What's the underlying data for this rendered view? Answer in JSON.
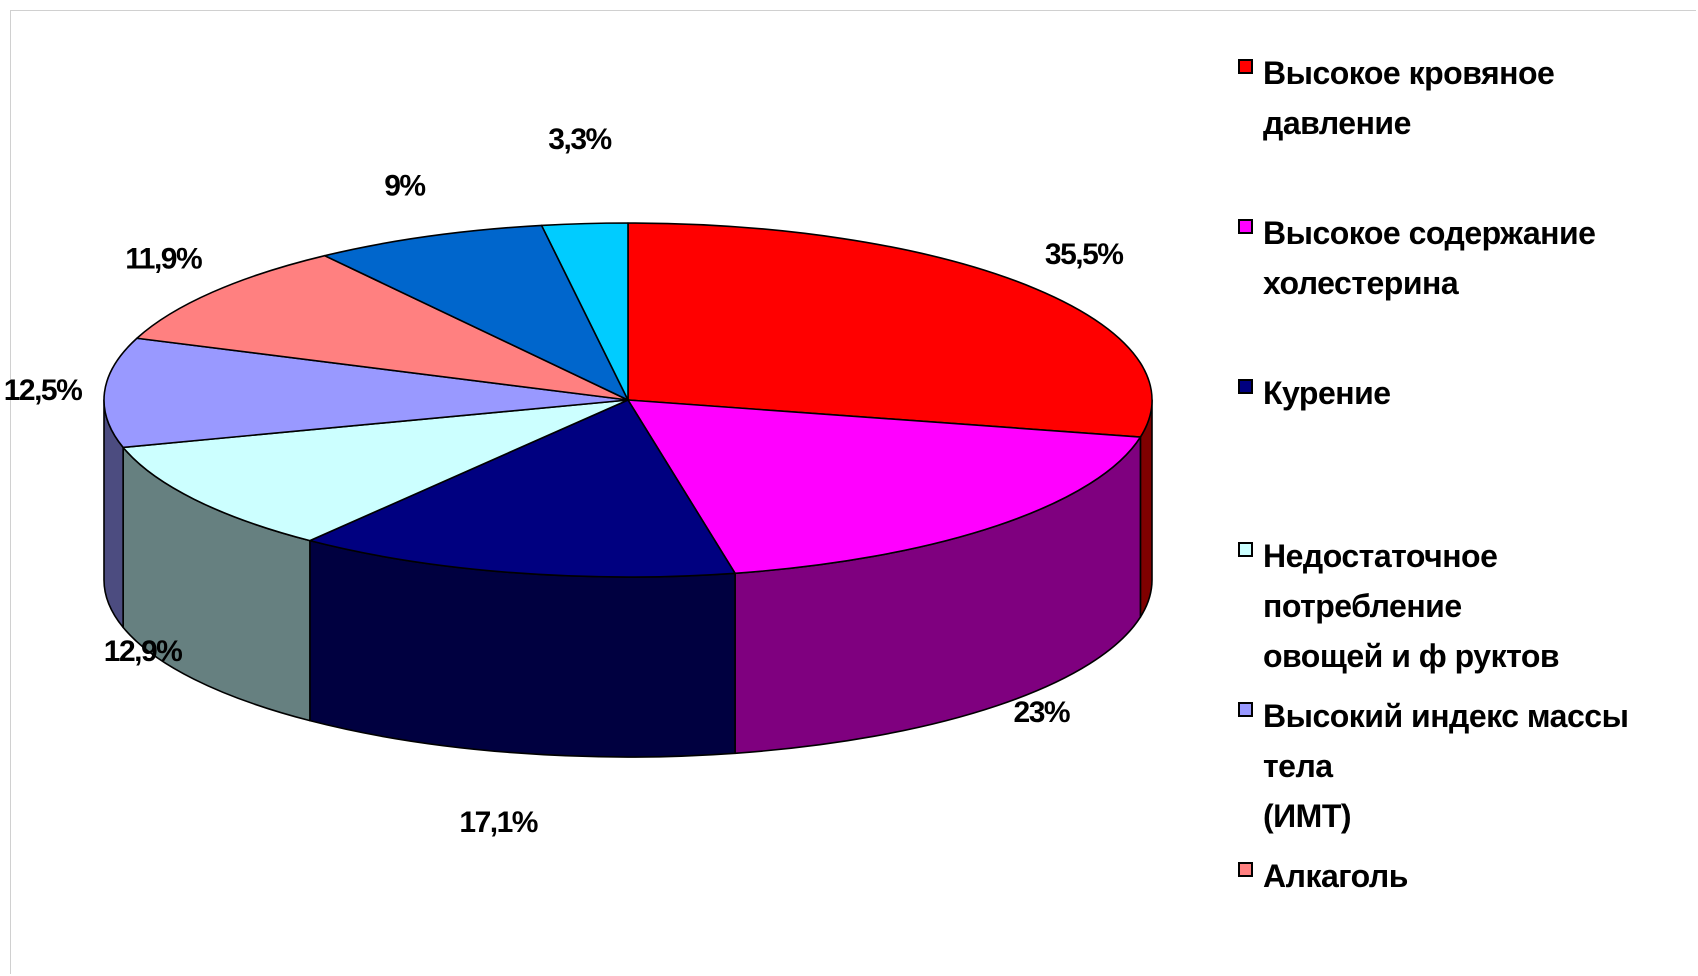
{
  "chart_data": {
    "type": "pie",
    "three_d": true,
    "start_angle_deg": -90,
    "direction": "clockwise",
    "slices": [
      {
        "label": "Высокое кровяное давление",
        "value": 35.5,
        "value_label": "35,5%",
        "color": "#FF0000",
        "side_color": "#7F0000"
      },
      {
        "label": "Высокое содержание холестерина",
        "value": 23,
        "value_label": "23%",
        "color": "#FF00FF",
        "side_color": "#7F007F"
      },
      {
        "label": "Курение",
        "value": 17.1,
        "value_label": "17,1%",
        "color": "#000080",
        "side_color": "#000040"
      },
      {
        "label": "Недостаточное потребление овощей и фруктов",
        "value": 12.9,
        "value_label": "12,9%",
        "color": "#CCFFFF",
        "side_color": "#668080"
      },
      {
        "label": "Высокий индекс массы тела (ИМТ)",
        "value": 12.5,
        "value_label": "12,5%",
        "color": "#9999FF",
        "side_color": "#4C4C80"
      },
      {
        "label": "Алкаголь",
        "value": 11.9,
        "value_label": "11,9%",
        "color": "#FF8080",
        "side_color": "#804040"
      },
      {
        "label": "",
        "value": 9,
        "value_label": "9%",
        "color": "#0066CC",
        "side_color": "#003366"
      },
      {
        "label": "",
        "value": 3.3,
        "value_label": "3,3%",
        "color": "#00CCFF",
        "side_color": "#006680"
      }
    ],
    "legend_position": "right"
  },
  "legend": {
    "items": [
      {
        "text": "Высокое кровяное давление",
        "color": "#FF0000"
      },
      {
        "text": "Высокое содержание\nхолестерина",
        "color": "#FF00FF"
      },
      {
        "text": "Курение",
        "color": "#000080"
      },
      {
        "text": "Недостаточное потребление\nовощей и ф руктов",
        "color": "#CCFFFF"
      },
      {
        "text": "Высокий индекс массы тела\n(ИМТ)",
        "color": "#9999FF"
      },
      {
        "text": "Алкаголь",
        "color": "#FF8080"
      }
    ]
  }
}
